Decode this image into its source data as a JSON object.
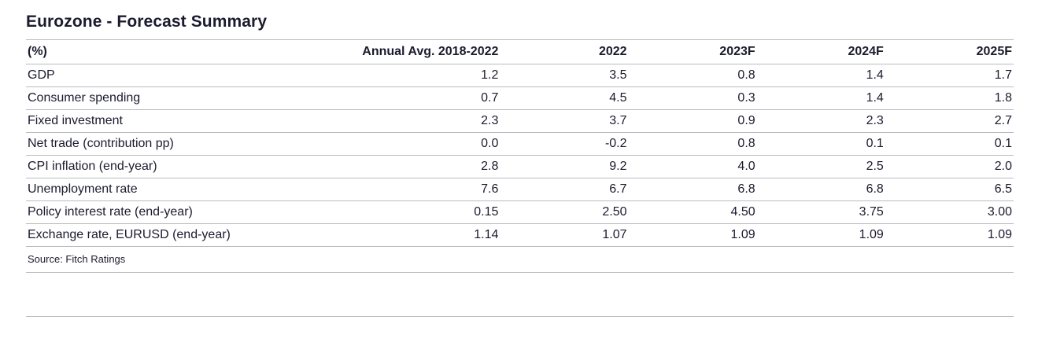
{
  "page": {
    "title": "Eurozone - Forecast Summary",
    "source": "Source: Fitch Ratings"
  },
  "colors": {
    "text": "#1b1b2f",
    "rule": "#b9bcbe",
    "background": "#ffffff"
  },
  "chart_data": {
    "type": "table",
    "title": "Eurozone - Forecast Summary",
    "unit": "(%)",
    "columns": [
      "(%)",
      "Annual Avg. 2018-2022",
      "2022",
      "2023F",
      "2024F",
      "2025F"
    ],
    "rows": [
      {
        "label": "GDP",
        "values": [
          "1.2",
          "3.5",
          "0.8",
          "1.4",
          "1.7"
        ]
      },
      {
        "label": "Consumer spending",
        "values": [
          "0.7",
          "4.5",
          "0.3",
          "1.4",
          "1.8"
        ]
      },
      {
        "label": "Fixed investment",
        "values": [
          "2.3",
          "3.7",
          "0.9",
          "2.3",
          "2.7"
        ]
      },
      {
        "label": "Net trade (contribution pp)",
        "values": [
          "0.0",
          "-0.2",
          "0.8",
          "0.1",
          "0.1"
        ]
      },
      {
        "label": "CPI inflation (end-year)",
        "values": [
          "2.8",
          "9.2",
          "4.0",
          "2.5",
          "2.0"
        ]
      },
      {
        "label": "Unemployment rate",
        "values": [
          "7.6",
          "6.7",
          "6.8",
          "6.8",
          "6.5"
        ]
      },
      {
        "label": "Policy interest rate (end-year)",
        "values": [
          "0.15",
          "2.50",
          "4.50",
          "3.75",
          "3.00"
        ]
      },
      {
        "label": "Exchange rate, EURUSD (end-year)",
        "values": [
          "1.14",
          "1.07",
          "1.09",
          "1.09",
          "1.09"
        ]
      }
    ],
    "source": "Source: Fitch Ratings",
    "layout": {
      "header_alignment": "right",
      "label_alignment": "left",
      "grid": "horizontal-rules-only"
    }
  }
}
